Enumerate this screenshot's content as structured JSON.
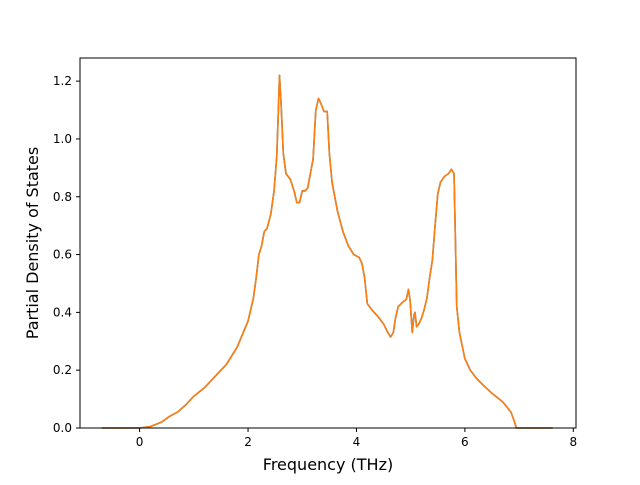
{
  "chart_data": {
    "type": "line",
    "xlabel": "Frequency (THz)",
    "ylabel": "Partial Density of States",
    "xlim": [
      -1.1,
      8.05
    ],
    "ylim": [
      0.0,
      1.28
    ],
    "xticks": [
      0,
      2,
      4,
      6,
      8
    ],
    "yticks": [
      0.0,
      0.2,
      0.4,
      0.6,
      0.8,
      1.0,
      1.2
    ],
    "xtick_labels": [
      "0",
      "2",
      "4",
      "6",
      "8"
    ],
    "ytick_labels": [
      "0.0",
      "0.2",
      "0.4",
      "0.6",
      "0.8",
      "1.0",
      "1.2"
    ],
    "grid": false,
    "line_colors": [
      "#1f77b4",
      "#ff7f0e"
    ],
    "series": [
      {
        "points": [
          [
            -0.7,
            0.0
          ],
          [
            0.0,
            0.0
          ],
          [
            0.2,
            0.005
          ],
          [
            0.4,
            0.02
          ],
          [
            0.55,
            0.04
          ],
          [
            0.7,
            0.055
          ],
          [
            0.85,
            0.08
          ],
          [
            1.0,
            0.11
          ],
          [
            1.2,
            0.14
          ],
          [
            1.4,
            0.18
          ],
          [
            1.6,
            0.22
          ],
          [
            1.8,
            0.28
          ],
          [
            2.0,
            0.37
          ],
          [
            2.1,
            0.45
          ],
          [
            2.15,
            0.52
          ],
          [
            2.2,
            0.6
          ],
          [
            2.25,
            0.63
          ],
          [
            2.3,
            0.68
          ],
          [
            2.35,
            0.69
          ],
          [
            2.42,
            0.74
          ],
          [
            2.48,
            0.82
          ],
          [
            2.53,
            0.94
          ],
          [
            2.56,
            1.1
          ],
          [
            2.58,
            1.22
          ],
          [
            2.61,
            1.12
          ],
          [
            2.65,
            0.95
          ],
          [
            2.7,
            0.88
          ],
          [
            2.78,
            0.86
          ],
          [
            2.85,
            0.82
          ],
          [
            2.9,
            0.78
          ],
          [
            2.95,
            0.78
          ],
          [
            3.0,
            0.82
          ],
          [
            3.05,
            0.82
          ],
          [
            3.1,
            0.83
          ],
          [
            3.15,
            0.88
          ],
          [
            3.2,
            0.93
          ],
          [
            3.25,
            1.1
          ],
          [
            3.3,
            1.14
          ],
          [
            3.35,
            1.12
          ],
          [
            3.4,
            1.095
          ],
          [
            3.46,
            1.095
          ],
          [
            3.5,
            0.95
          ],
          [
            3.55,
            0.85
          ],
          [
            3.65,
            0.75
          ],
          [
            3.75,
            0.68
          ],
          [
            3.85,
            0.63
          ],
          [
            3.95,
            0.6
          ],
          [
            4.05,
            0.59
          ],
          [
            4.1,
            0.57
          ],
          [
            4.15,
            0.52
          ],
          [
            4.2,
            0.43
          ],
          [
            4.3,
            0.405
          ],
          [
            4.4,
            0.385
          ],
          [
            4.5,
            0.36
          ],
          [
            4.58,
            0.33
          ],
          [
            4.63,
            0.315
          ],
          [
            4.68,
            0.33
          ],
          [
            4.72,
            0.38
          ],
          [
            4.77,
            0.42
          ],
          [
            4.85,
            0.435
          ],
          [
            4.92,
            0.445
          ],
          [
            4.96,
            0.48
          ],
          [
            4.99,
            0.44
          ],
          [
            5.03,
            0.33
          ],
          [
            5.06,
            0.39
          ],
          [
            5.08,
            0.4
          ],
          [
            5.11,
            0.35
          ],
          [
            5.15,
            0.36
          ],
          [
            5.2,
            0.38
          ],
          [
            5.25,
            0.41
          ],
          [
            5.3,
            0.45
          ],
          [
            5.35,
            0.52
          ],
          [
            5.4,
            0.58
          ],
          [
            5.45,
            0.7
          ],
          [
            5.5,
            0.81
          ],
          [
            5.55,
            0.85
          ],
          [
            5.62,
            0.87
          ],
          [
            5.7,
            0.88
          ],
          [
            5.75,
            0.895
          ],
          [
            5.8,
            0.88
          ],
          [
            5.82,
            0.7
          ],
          [
            5.85,
            0.42
          ],
          [
            5.9,
            0.33
          ],
          [
            6.0,
            0.24
          ],
          [
            6.1,
            0.2
          ],
          [
            6.2,
            0.175
          ],
          [
            6.3,
            0.155
          ],
          [
            6.5,
            0.12
          ],
          [
            6.7,
            0.09
          ],
          [
            6.85,
            0.055
          ],
          [
            6.9,
            0.03
          ],
          [
            6.95,
            0.0
          ],
          [
            7.62,
            0.0
          ]
        ]
      },
      {
        "points": [
          [
            -0.7,
            0.0
          ],
          [
            0.0,
            0.0
          ],
          [
            0.2,
            0.005
          ],
          [
            0.4,
            0.02
          ],
          [
            0.55,
            0.04
          ],
          [
            0.7,
            0.055
          ],
          [
            0.85,
            0.08
          ],
          [
            1.0,
            0.11
          ],
          [
            1.2,
            0.14
          ],
          [
            1.4,
            0.18
          ],
          [
            1.6,
            0.22
          ],
          [
            1.8,
            0.28
          ],
          [
            2.0,
            0.37
          ],
          [
            2.1,
            0.45
          ],
          [
            2.15,
            0.52
          ],
          [
            2.2,
            0.6
          ],
          [
            2.25,
            0.63
          ],
          [
            2.3,
            0.68
          ],
          [
            2.35,
            0.69
          ],
          [
            2.42,
            0.74
          ],
          [
            2.48,
            0.82
          ],
          [
            2.53,
            0.94
          ],
          [
            2.56,
            1.1
          ],
          [
            2.58,
            1.22
          ],
          [
            2.61,
            1.12
          ],
          [
            2.65,
            0.95
          ],
          [
            2.7,
            0.88
          ],
          [
            2.78,
            0.86
          ],
          [
            2.85,
            0.82
          ],
          [
            2.9,
            0.78
          ],
          [
            2.95,
            0.78
          ],
          [
            3.0,
            0.82
          ],
          [
            3.05,
            0.82
          ],
          [
            3.1,
            0.83
          ],
          [
            3.15,
            0.88
          ],
          [
            3.2,
            0.93
          ],
          [
            3.25,
            1.1
          ],
          [
            3.3,
            1.14
          ],
          [
            3.35,
            1.12
          ],
          [
            3.4,
            1.095
          ],
          [
            3.46,
            1.095
          ],
          [
            3.5,
            0.95
          ],
          [
            3.55,
            0.85
          ],
          [
            3.65,
            0.75
          ],
          [
            3.75,
            0.68
          ],
          [
            3.85,
            0.63
          ],
          [
            3.95,
            0.6
          ],
          [
            4.05,
            0.59
          ],
          [
            4.1,
            0.57
          ],
          [
            4.15,
            0.52
          ],
          [
            4.2,
            0.43
          ],
          [
            4.3,
            0.405
          ],
          [
            4.4,
            0.385
          ],
          [
            4.5,
            0.36
          ],
          [
            4.58,
            0.33
          ],
          [
            4.63,
            0.315
          ],
          [
            4.68,
            0.33
          ],
          [
            4.72,
            0.38
          ],
          [
            4.77,
            0.42
          ],
          [
            4.85,
            0.435
          ],
          [
            4.92,
            0.445
          ],
          [
            4.96,
            0.48
          ],
          [
            4.99,
            0.44
          ],
          [
            5.03,
            0.33
          ],
          [
            5.06,
            0.39
          ],
          [
            5.08,
            0.4
          ],
          [
            5.11,
            0.35
          ],
          [
            5.15,
            0.36
          ],
          [
            5.2,
            0.38
          ],
          [
            5.25,
            0.41
          ],
          [
            5.3,
            0.45
          ],
          [
            5.35,
            0.52
          ],
          [
            5.4,
            0.58
          ],
          [
            5.45,
            0.7
          ],
          [
            5.5,
            0.81
          ],
          [
            5.55,
            0.85
          ],
          [
            5.62,
            0.87
          ],
          [
            5.7,
            0.88
          ],
          [
            5.75,
            0.895
          ],
          [
            5.8,
            0.88
          ],
          [
            5.82,
            0.7
          ],
          [
            5.85,
            0.42
          ],
          [
            5.9,
            0.33
          ],
          [
            6.0,
            0.24
          ],
          [
            6.1,
            0.2
          ],
          [
            6.2,
            0.175
          ],
          [
            6.3,
            0.155
          ],
          [
            6.5,
            0.12
          ],
          [
            6.7,
            0.09
          ],
          [
            6.85,
            0.055
          ],
          [
            6.9,
            0.03
          ],
          [
            6.95,
            0.0
          ],
          [
            7.62,
            0.0
          ]
        ]
      }
    ]
  }
}
